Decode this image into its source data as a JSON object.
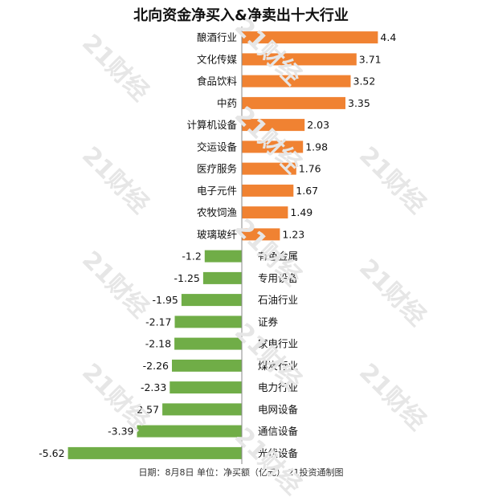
{
  "chart_data": {
    "type": "bar",
    "orientation": "horizontal",
    "title": "北向资金净买入&净卖出十大行业",
    "categories": [
      "酿酒行业",
      "文化传媒",
      "食品饮料",
      "中药",
      "计算机设备",
      "交运设备",
      "医疗服务",
      "电子元件",
      "农牧饲渔",
      "玻璃玻纤",
      "有色金属",
      "专用设备",
      "石油行业",
      "证券",
      "家电行业",
      "煤炭行业",
      "电力行业",
      "电网设备",
      "通信设备",
      "光伏设备"
    ],
    "values": [
      4.4,
      3.71,
      3.52,
      3.35,
      2.03,
      1.98,
      1.76,
      1.67,
      1.49,
      1.23,
      -1.2,
      -1.25,
      -1.95,
      -2.17,
      -2.18,
      -2.26,
      -2.33,
      -2.57,
      -3.39,
      -5.62
    ],
    "value_labels": [
      "4.4",
      "3.71",
      "3.52",
      "3.35",
      "2.03",
      "1.98",
      "1.76",
      "1.67",
      "1.49",
      "1.23",
      "-1.2",
      "-1.25",
      "-1.95",
      "-2.17",
      "-2.18",
      "-2.26",
      "-2.33",
      "-2.57",
      "-3.39",
      "-5.62"
    ],
    "colors": {
      "positive": "#f08232",
      "negative": "#70ad47",
      "axis": "#8a8a8a",
      "text": "#111111"
    },
    "footer": "日期：8月8日 单位：净买额（亿元） 21投资通制图"
  },
  "watermark": "21财经"
}
